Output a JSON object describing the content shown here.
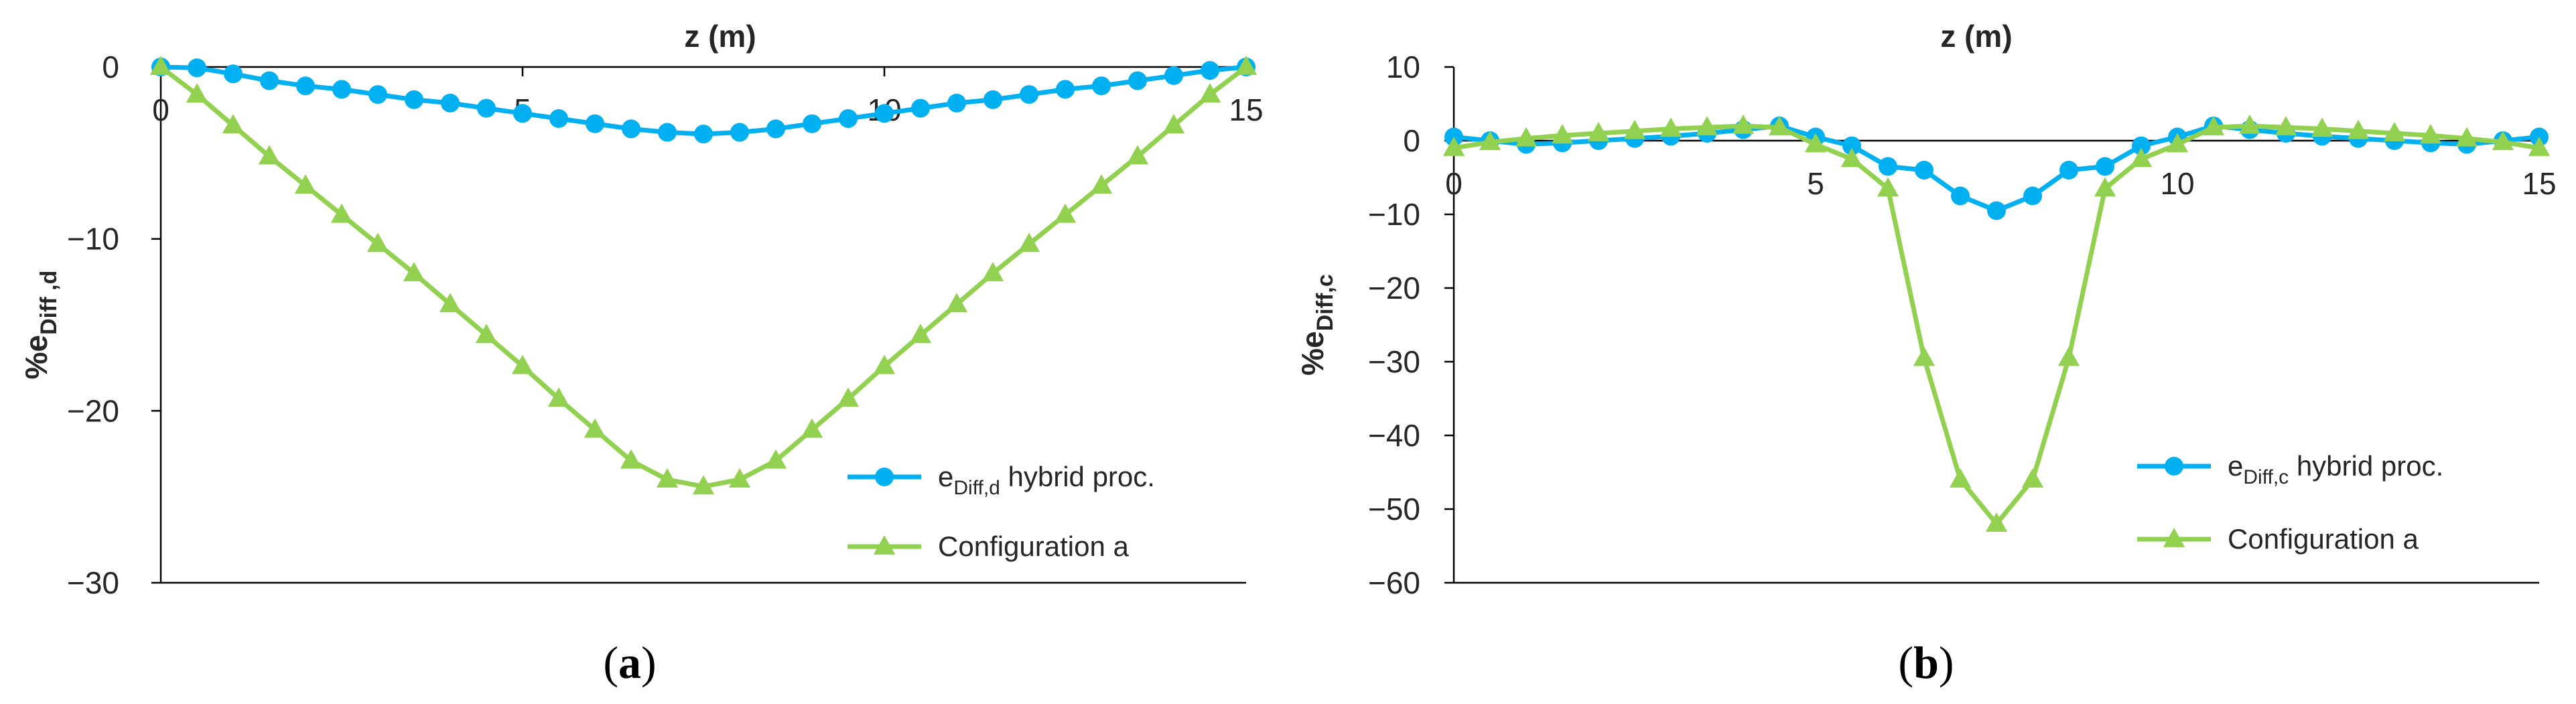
{
  "chart_data": [
    {
      "type": "line",
      "panel_label": "a",
      "title": "",
      "xlabel": "z (m)",
      "ylabel_main": "%e",
      "ylabel_sub": "Diff ,d",
      "xlim": [
        0,
        15
      ],
      "ylim": [
        -30,
        0
      ],
      "xticks": [
        0,
        5,
        10,
        15
      ],
      "xtick_labels": [
        "0",
        "5",
        "10",
        "15"
      ],
      "yticks": [
        0,
        -10,
        -20,
        -30
      ],
      "ytick_labels": [
        "0",
        "−10",
        "−20",
        "−30"
      ],
      "legend_position": "bottom-right",
      "series": [
        {
          "name": "hybrid",
          "legend_main": "e",
          "legend_sub": "Diff,d",
          "legend_rest": " hybrid proc.",
          "marker": "circle",
          "color": "#00B0F0",
          "x": [
            0,
            0.5,
            1,
            1.5,
            2,
            2.5,
            3,
            3.5,
            4,
            4.5,
            5,
            5.5,
            6,
            6.5,
            7,
            7.5,
            8,
            8.5,
            9,
            9.5,
            10,
            10.5,
            11,
            11.5,
            12,
            12.5,
            13,
            13.5,
            14,
            14.5,
            15
          ],
          "values": [
            0,
            -0.05,
            -0.4,
            -0.8,
            -1.1,
            -1.3,
            -1.6,
            -1.9,
            -2.1,
            -2.4,
            -2.7,
            -3.0,
            -3.3,
            -3.6,
            -3.8,
            -3.9,
            -3.8,
            -3.6,
            -3.3,
            -3.0,
            -2.7,
            -2.4,
            -2.1,
            -1.9,
            -1.6,
            -1.3,
            -1.1,
            -0.8,
            -0.5,
            -0.2,
            0
          ]
        },
        {
          "name": "config_a",
          "legend_main": "Configuration a",
          "legend_sub": "",
          "legend_rest": "",
          "marker": "triangle",
          "color": "#92D050",
          "x": [
            0,
            0.5,
            1,
            1.5,
            2,
            2.5,
            3,
            3.5,
            4,
            4.5,
            5,
            5.5,
            6,
            6.5,
            7,
            7.5,
            8,
            8.5,
            9,
            9.5,
            10,
            10.5,
            11,
            11.5,
            12,
            12.5,
            13,
            13.5,
            14,
            14.5,
            15
          ],
          "values": [
            0,
            -1.6,
            -3.4,
            -5.2,
            -6.9,
            -8.6,
            -10.3,
            -12.0,
            -13.8,
            -15.6,
            -17.4,
            -19.3,
            -21.1,
            -22.9,
            -24.0,
            -24.4,
            -24.0,
            -22.9,
            -21.1,
            -19.3,
            -17.4,
            -15.6,
            -13.8,
            -12.0,
            -10.3,
            -8.6,
            -6.9,
            -5.2,
            -3.4,
            -1.6,
            0
          ]
        }
      ]
    },
    {
      "type": "line",
      "panel_label": "b",
      "title": "",
      "xlabel": "z (m)",
      "ylabel_main": "%e",
      "ylabel_sub": "Diff,c",
      "xlim": [
        0,
        15
      ],
      "ylim": [
        -60,
        10
      ],
      "xticks": [
        0,
        5,
        10,
        15
      ],
      "xtick_labels": [
        "0",
        "5",
        "10",
        "15"
      ],
      "yticks": [
        10,
        0,
        -10,
        -20,
        -30,
        -40,
        -50,
        -60
      ],
      "ytick_labels": [
        "10",
        "0",
        "−10",
        "−20",
        "−30",
        "−40",
        "−50",
        "−60"
      ],
      "legend_position": "bottom-right",
      "series": [
        {
          "name": "hybrid",
          "legend_main": "e",
          "legend_sub": "Diff,c",
          "legend_rest": " hybrid proc.",
          "marker": "circle",
          "color": "#00B0F0",
          "x": [
            0,
            0.5,
            1,
            1.5,
            2,
            2.5,
            3,
            3.5,
            4,
            4.5,
            5,
            5.5,
            6,
            6.5,
            7,
            7.5,
            8,
            8.5,
            9,
            9.5,
            10,
            10.5,
            11,
            11.5,
            12,
            12.5,
            13,
            13.5,
            14,
            14.5,
            15
          ],
          "values": [
            0.5,
            0,
            -0.5,
            -0.3,
            0,
            0.3,
            0.6,
            1.0,
            1.5,
            2.0,
            0.5,
            -0.7,
            -3.5,
            -4.0,
            -7.5,
            -9.5,
            -7.5,
            -4.0,
            -3.5,
            -0.7,
            0.5,
            2.0,
            1.5,
            1.0,
            0.6,
            0.3,
            0,
            -0.3,
            -0.5,
            0,
            0.5
          ]
        },
        {
          "name": "config_a",
          "legend_main": "Configuration a",
          "legend_sub": "",
          "legend_rest": "",
          "marker": "triangle",
          "color": "#92D050",
          "x": [
            0,
            0.5,
            1,
            1.5,
            2,
            2.5,
            3,
            3.5,
            4,
            4.5,
            5,
            5.5,
            6,
            6.5,
            7,
            7.5,
            8,
            8.5,
            9,
            9.5,
            10,
            10.5,
            11,
            11.5,
            12,
            12.5,
            13,
            13.5,
            14,
            14.5,
            15
          ],
          "values": [
            -1.0,
            -0.2,
            0.3,
            0.7,
            1.0,
            1.3,
            1.6,
            1.8,
            2.0,
            1.8,
            -0.5,
            -2.5,
            -6.5,
            -29.5,
            -46,
            -52,
            -46,
            -29.5,
            -6.5,
            -2.5,
            -0.5,
            1.8,
            2.0,
            1.8,
            1.6,
            1.3,
            1.0,
            0.7,
            0.3,
            -0.2,
            -1.0
          ]
        }
      ]
    }
  ]
}
